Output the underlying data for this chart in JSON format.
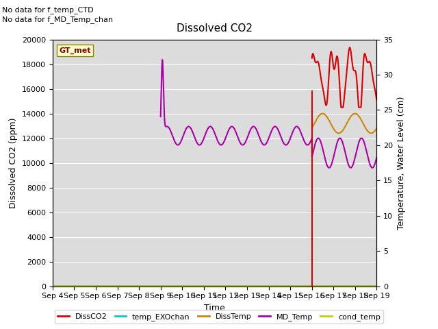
{
  "title": "Dissolved CO2",
  "xlabel": "Time",
  "ylabel_left": "Dissolved CO2 (ppm)",
  "ylabel_right": "Temperature, Water Level (cm)",
  "annotation_lines": [
    "No data for f_temp_CTD",
    "No data for f_MD_Temp_chan"
  ],
  "gt_met_label": "GT_met",
  "ylim_left": [
    0,
    20000
  ],
  "ylim_right": [
    0,
    35
  ],
  "x_tick_labels": [
    "Sep 4",
    "Sep 5",
    "Sep 6",
    "Sep 7",
    "Sep 8",
    "Sep 9",
    "Sep 10",
    "Sep 11",
    "Sep 12",
    "Sep 13",
    "Sep 14",
    "Sep 15",
    "Sep 16",
    "Sep 17",
    "Sep 18",
    "Sep 19"
  ],
  "background_color": "#dcdcdc",
  "fig_bg_color": "#ffffff",
  "grid_color": "#ffffff",
  "legend_entries": [
    "DissCO2",
    "temp_EXOchan",
    "DissTemp",
    "MD_Temp",
    "cond_temp"
  ],
  "legend_colors": [
    "#dd0000",
    "#00cccc",
    "#cc8800",
    "#aa00aa",
    "#cccc00"
  ],
  "title_fontsize": 11,
  "label_fontsize": 9,
  "tick_fontsize": 8
}
